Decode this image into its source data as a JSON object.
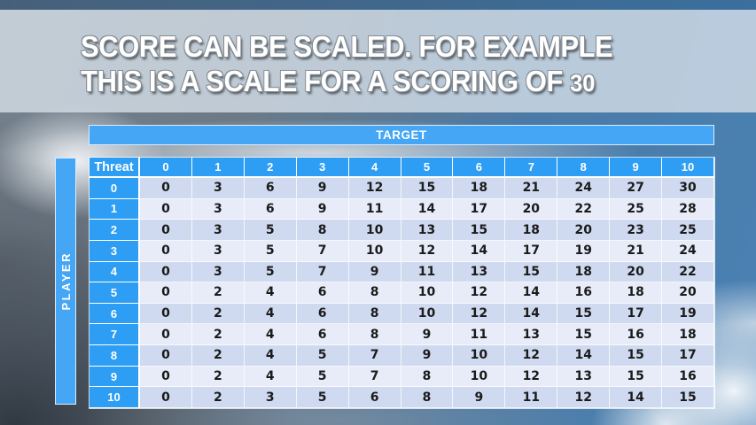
{
  "slide": {
    "title_line1": "SCORE CAN BE SCALED. FOR EXAMPLE",
    "title_line2_prefix": "THIS IS A SCALE FOR A SCORING OF",
    "title_scale_value": "30"
  },
  "table": {
    "target_label": "TARGET",
    "player_label": "PLAYER",
    "corner_label": "Threat",
    "column_headers": [
      "0",
      "1",
      "2",
      "3",
      "4",
      "5",
      "6",
      "7",
      "8",
      "9",
      "10"
    ],
    "row_headers": [
      "0",
      "1",
      "2",
      "3",
      "4",
      "5",
      "6",
      "7",
      "8",
      "9",
      "10"
    ],
    "rows": [
      [
        0,
        3,
        6,
        9,
        12,
        15,
        18,
        21,
        24,
        27,
        30
      ],
      [
        0,
        3,
        6,
        9,
        11,
        14,
        17,
        20,
        22,
        25,
        28
      ],
      [
        0,
        3,
        5,
        8,
        10,
        13,
        15,
        18,
        20,
        23,
        25
      ],
      [
        0,
        3,
        5,
        7,
        10,
        12,
        14,
        17,
        19,
        21,
        24
      ],
      [
        0,
        3,
        5,
        7,
        9,
        11,
        13,
        15,
        18,
        20,
        22
      ],
      [
        0,
        2,
        4,
        6,
        8,
        10,
        12,
        14,
        16,
        18,
        20
      ],
      [
        0,
        2,
        4,
        6,
        8,
        10,
        12,
        14,
        15,
        17,
        19
      ],
      [
        0,
        2,
        4,
        6,
        8,
        9,
        11,
        13,
        15,
        16,
        18
      ],
      [
        0,
        2,
        4,
        5,
        7,
        9,
        10,
        12,
        14,
        15,
        17
      ],
      [
        0,
        2,
        4,
        5,
        7,
        8,
        10,
        12,
        13,
        15,
        16
      ],
      [
        0,
        2,
        3,
        5,
        6,
        8,
        9,
        11,
        12,
        14,
        15
      ]
    ]
  },
  "colors": {
    "accent_bar": "#45a6f5",
    "accent_cell": "#2d9ef4",
    "band_dark": "#cfdaf0",
    "band_light": "#e8ecf9",
    "title_text": "#ffffff",
    "cell_text": "#1b1b1b"
  }
}
